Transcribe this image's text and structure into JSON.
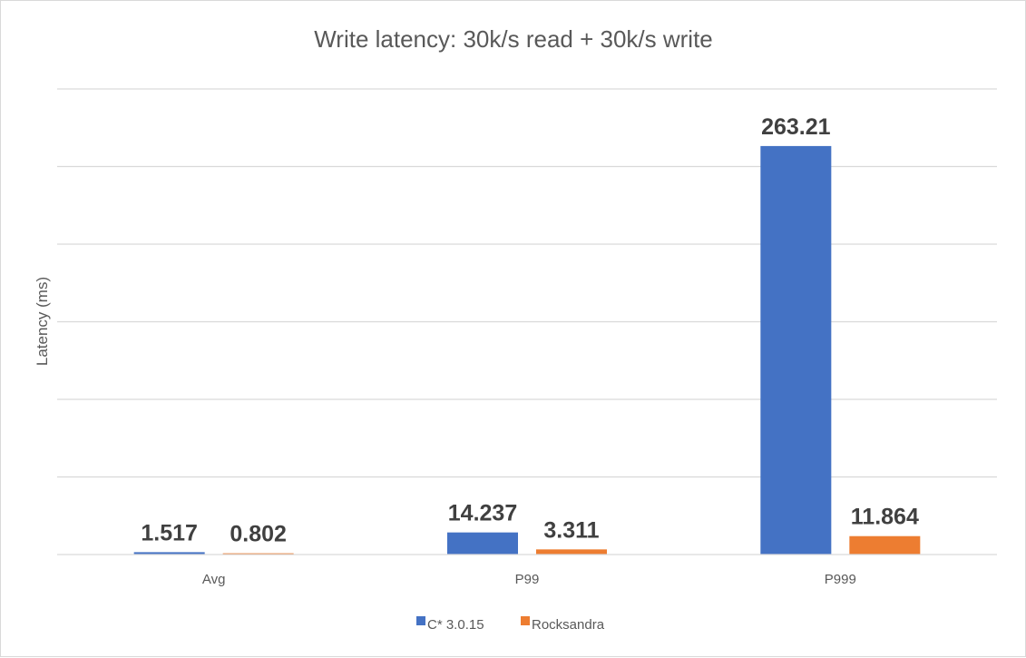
{
  "chart_data": {
    "type": "bar",
    "title": "Write latency: 30k/s read + 30k/s write",
    "xlabel": "",
    "ylabel": "Latency (ms)",
    "categories": [
      "Avg",
      "P99",
      "P999"
    ],
    "series": [
      {
        "name": "C* 3.0.15",
        "color": "#4472c4",
        "values": [
          1.517,
          14.237,
          263.21
        ]
      },
      {
        "name": "Rocksandra",
        "color": "#ed7d31",
        "values": [
          0.802,
          3.311,
          11.864
        ]
      }
    ],
    "value_labels": [
      [
        "1.517",
        "14.237",
        "263.21"
      ],
      [
        "0.802",
        "3.311",
        "11.864"
      ]
    ],
    "ylim": [
      0,
      300
    ],
    "grid": true,
    "y_tick_labels_shown": false,
    "legend_placement": "bottom",
    "gridline_color": "#d9d9d9"
  }
}
